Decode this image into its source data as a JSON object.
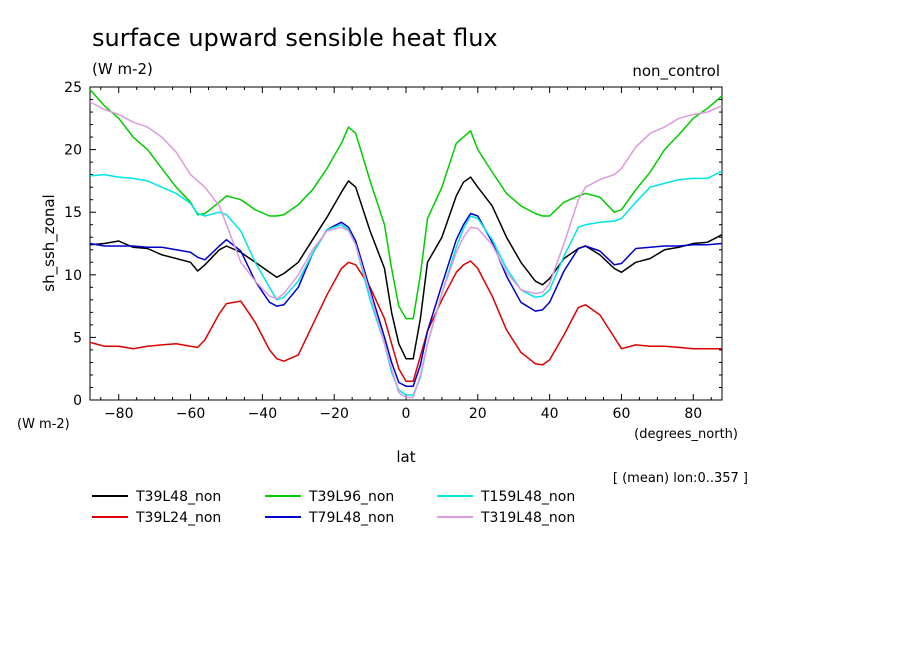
{
  "chart_data": {
    "type": "line",
    "title": "surface upward sensible heat flux",
    "subtitle": "(W m-2)",
    "annotation": "non_control",
    "ylabel": "sh_ssh_zonal",
    "yunits": "(W m-2)",
    "xlabel": "lat",
    "xunits": "(degrees_north)",
    "footnote": "[ (mean) lon:0..357 ]",
    "xlim": [
      -88,
      88
    ],
    "ylim": [
      0,
      25
    ],
    "xticks": [
      -80,
      -60,
      -40,
      -20,
      0,
      20,
      40,
      60,
      80
    ],
    "yticks": [
      0,
      5,
      10,
      15,
      20,
      25
    ],
    "legend_position": "bottom",
    "x": [
      -88,
      -84,
      -80,
      -76,
      -72,
      -68,
      -64,
      -60,
      -58,
      -56,
      -52,
      -50,
      -46,
      -42,
      -38,
      -36,
      -34,
      -30,
      -26,
      -22,
      -18,
      -16,
      -14,
      -10,
      -6,
      -4,
      -2,
      0,
      2,
      4,
      6,
      10,
      14,
      16,
      18,
      20,
      24,
      28,
      32,
      36,
      38,
      40,
      44,
      48,
      50,
      54,
      58,
      60,
      64,
      68,
      72,
      76,
      80,
      84,
      88
    ],
    "series": [
      {
        "name": "T39L48_non",
        "color": "#000000",
        "values": [
          12.4,
          12.5,
          12.7,
          12.2,
          12.1,
          11.6,
          11.3,
          11.0,
          10.3,
          10.8,
          12.0,
          12.3,
          11.8,
          11.0,
          10.2,
          9.8,
          10.1,
          11.0,
          12.8,
          14.6,
          16.6,
          17.5,
          17.0,
          13.5,
          10.5,
          7.0,
          4.5,
          3.3,
          3.3,
          6.5,
          11.0,
          13.0,
          16.3,
          17.4,
          17.8,
          17.0,
          15.5,
          13.0,
          11.0,
          9.5,
          9.2,
          9.7,
          11.3,
          12.1,
          12.3,
          11.6,
          10.5,
          10.2,
          11.0,
          11.3,
          12.0,
          12.2,
          12.5,
          12.6,
          13.2
        ]
      },
      {
        "name": "T39L24_non",
        "color": "#dd0000",
        "values": [
          4.6,
          4.3,
          4.3,
          4.1,
          4.3,
          4.4,
          4.5,
          4.3,
          4.2,
          4.8,
          6.9,
          7.7,
          7.9,
          6.2,
          4.0,
          3.3,
          3.1,
          3.6,
          6.0,
          8.4,
          10.5,
          11.0,
          10.8,
          9.0,
          6.5,
          4.5,
          2.5,
          1.5,
          1.5,
          3.5,
          5.5,
          8.0,
          10.2,
          10.8,
          11.1,
          10.5,
          8.3,
          5.6,
          3.8,
          2.9,
          2.8,
          3.2,
          5.2,
          7.4,
          7.6,
          6.8,
          5.0,
          4.1,
          4.4,
          4.3,
          4.3,
          4.2,
          4.1,
          4.1,
          4.1
        ]
      },
      {
        "name": "T39L96_non",
        "color": "#00cc00",
        "values": [
          24.8,
          23.5,
          22.5,
          21.0,
          20.0,
          18.5,
          17.0,
          15.8,
          14.8,
          14.9,
          15.8,
          16.3,
          16.0,
          15.2,
          14.7,
          14.7,
          14.8,
          15.6,
          16.8,
          18.5,
          20.5,
          21.8,
          21.3,
          17.5,
          14.0,
          10.5,
          7.5,
          6.5,
          6.5,
          10.0,
          14.5,
          17.0,
          20.5,
          21.0,
          21.5,
          20.0,
          18.2,
          16.5,
          15.5,
          14.9,
          14.7,
          14.7,
          15.8,
          16.3,
          16.5,
          16.2,
          15.0,
          15.2,
          16.8,
          18.2,
          20.0,
          21.2,
          22.5,
          23.3,
          24.3
        ]
      },
      {
        "name": "T79L48_non",
        "color": "#0000cc",
        "values": [
          12.5,
          12.3,
          12.3,
          12.3,
          12.2,
          12.2,
          12.0,
          11.8,
          11.4,
          11.2,
          12.3,
          12.8,
          11.9,
          9.5,
          7.8,
          7.5,
          7.6,
          9.0,
          11.7,
          13.6,
          14.2,
          13.8,
          12.7,
          8.8,
          5.0,
          3.0,
          1.4,
          1.1,
          1.1,
          2.8,
          5.5,
          9.2,
          12.8,
          14.0,
          14.9,
          14.7,
          12.6,
          9.9,
          7.8,
          7.1,
          7.2,
          7.8,
          10.3,
          12.1,
          12.3,
          11.9,
          10.8,
          10.9,
          12.1,
          12.2,
          12.3,
          12.3,
          12.4,
          12.4,
          12.5
        ]
      },
      {
        "name": "T159L48_non",
        "color": "#00e5e5",
        "values": [
          17.9,
          18.0,
          17.8,
          17.7,
          17.5,
          17.0,
          16.5,
          15.7,
          14.9,
          14.7,
          15.0,
          14.8,
          13.5,
          11.0,
          9.0,
          8.0,
          8.2,
          9.5,
          11.7,
          13.6,
          14.0,
          13.6,
          12.4,
          8.0,
          4.5,
          2.2,
          0.8,
          0.4,
          0.4,
          1.8,
          4.5,
          8.5,
          12.2,
          13.7,
          14.7,
          14.5,
          12.8,
          10.5,
          8.8,
          8.2,
          8.3,
          8.8,
          11.5,
          13.8,
          14.0,
          14.2,
          14.3,
          14.5,
          15.8,
          17.0,
          17.3,
          17.6,
          17.7,
          17.7,
          18.3
        ]
      },
      {
        "name": "T319L48_non",
        "color": "#dd99dd",
        "values": [
          23.8,
          23.2,
          22.8,
          22.2,
          21.8,
          21.0,
          19.8,
          18.0,
          17.5,
          17.0,
          15.5,
          14.0,
          11.0,
          9.5,
          8.3,
          8.1,
          8.5,
          10.0,
          12.0,
          13.5,
          13.8,
          13.5,
          12.4,
          8.5,
          4.5,
          2.5,
          0.6,
          0.2,
          0.2,
          2.0,
          4.5,
          8.5,
          11.8,
          13.0,
          13.8,
          13.7,
          12.4,
          10.2,
          8.8,
          8.5,
          8.6,
          9.3,
          12.5,
          16.0,
          17.0,
          17.6,
          18.0,
          18.5,
          20.2,
          21.3,
          21.8,
          22.5,
          22.8,
          23.0,
          23.5
        ]
      }
    ]
  }
}
